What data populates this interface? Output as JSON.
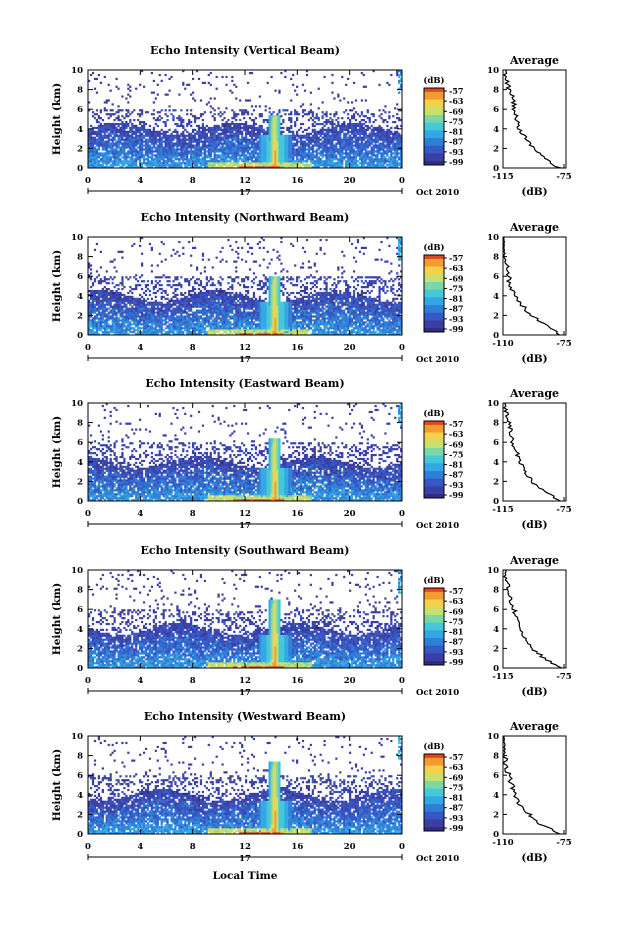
{
  "figure": {
    "x_axis_label": "Local Time",
    "date_label": "Oct 2010",
    "day_label": "17"
  },
  "chart_data": [
    {
      "type": "heatmap",
      "title": "Echo Intensity (Vertical Beam)",
      "ylabel": "Height (km)",
      "xticks": [
        "0",
        "4",
        "8",
        "12",
        "16",
        "20",
        "0"
      ],
      "yticks": [
        "0",
        "2",
        "4",
        "6",
        "8",
        "10"
      ],
      "xlim": [
        0,
        24
      ],
      "ylim": [
        0,
        10
      ],
      "colorbar": {
        "unit": "(dB)",
        "ticks": [
          "-57",
          "-63",
          "-69",
          "-75",
          "-81",
          "-87",
          "-93",
          "-99"
        ]
      },
      "average": {
        "title": "Average",
        "xlabel": "(dB)",
        "xticks": [
          "-115",
          "-75"
        ],
        "yticks": [
          "0",
          "2",
          "4",
          "6",
          "8",
          "10"
        ],
        "height_km": [
          0,
          1,
          2,
          3,
          4,
          5,
          6,
          7,
          8,
          9,
          10
        ],
        "db": [
          -78,
          -88,
          -95,
          -100,
          -104,
          -106,
          -108,
          -108,
          -111,
          -113,
          -114
        ]
      }
    },
    {
      "type": "heatmap",
      "title": "Echo Intensity (Northward Beam)",
      "ylabel": "Height (km)",
      "xticks": [
        "0",
        "4",
        "8",
        "12",
        "16",
        "20",
        "0"
      ],
      "yticks": [
        "0",
        "2",
        "4",
        "6",
        "8",
        "10"
      ],
      "xlim": [
        0,
        24
      ],
      "ylim": [
        0,
        10
      ],
      "colorbar": {
        "unit": "(dB)",
        "ticks": [
          "-57",
          "-63",
          "-69",
          "-75",
          "-81",
          "-87",
          "-93",
          "-99"
        ]
      },
      "average": {
        "title": "Average",
        "xlabel": "(dB)",
        "xticks": [
          "-110",
          "-75"
        ],
        "yticks": [
          "0",
          "2",
          "4",
          "6",
          "8",
          "10"
        ],
        "height_km": [
          0,
          1,
          2,
          3,
          4,
          5,
          6,
          7,
          8,
          9,
          10
        ],
        "db": [
          -77,
          -86,
          -94,
          -99,
          -103,
          -106,
          -107,
          -108,
          -109,
          -110,
          -111
        ]
      }
    },
    {
      "type": "heatmap",
      "title": "Echo Intensity (Eastward Beam)",
      "ylabel": "Height (km)",
      "xticks": [
        "0",
        "4",
        "8",
        "12",
        "16",
        "20",
        "0"
      ],
      "yticks": [
        "0",
        "2",
        "4",
        "6",
        "8",
        "10"
      ],
      "xlim": [
        0,
        24
      ],
      "ylim": [
        0,
        10
      ],
      "colorbar": {
        "unit": "(dB)",
        "ticks": [
          "-57",
          "-63",
          "-69",
          "-75",
          "-81",
          "-87",
          "-93",
          "-99"
        ]
      },
      "average": {
        "title": "Average",
        "xlabel": "(dB)",
        "xticks": [
          "-115",
          "-75"
        ],
        "yticks": [
          "0",
          "2",
          "4",
          "6",
          "8",
          "10"
        ],
        "height_km": [
          0,
          1,
          2,
          3,
          4,
          5,
          6,
          7,
          8,
          9,
          10
        ],
        "db": [
          -78,
          -88,
          -96,
          -101,
          -104,
          -106,
          -109,
          -110,
          -111,
          -113,
          -114
        ]
      }
    },
    {
      "type": "heatmap",
      "title": "Echo Intensity (Southward Beam)",
      "ylabel": "Height (km)",
      "xticks": [
        "0",
        "4",
        "8",
        "12",
        "16",
        "20",
        "0"
      ],
      "yticks": [
        "0",
        "2",
        "4",
        "6",
        "8",
        "10"
      ],
      "xlim": [
        0,
        24
      ],
      "ylim": [
        0,
        10
      ],
      "colorbar": {
        "unit": "(dB)",
        "ticks": [
          "-57",
          "-63",
          "-69",
          "-75",
          "-81",
          "-87",
          "-93",
          "-99"
        ]
      },
      "average": {
        "title": "Average",
        "xlabel": "(dB)",
        "xticks": [
          "-115",
          "-75"
        ],
        "yticks": [
          "0",
          "2",
          "4",
          "6",
          "8",
          "10"
        ],
        "height_km": [
          0,
          1,
          2,
          3,
          4,
          5,
          6,
          7,
          8,
          9,
          10
        ],
        "db": [
          -77,
          -88,
          -96,
          -101,
          -104,
          -106,
          -108,
          -110,
          -111,
          -113,
          -114
        ]
      }
    },
    {
      "type": "heatmap",
      "title": "Echo Intensity (Westward Beam)",
      "ylabel": "Height (km)",
      "xticks": [
        "0",
        "4",
        "8",
        "12",
        "16",
        "20",
        "0"
      ],
      "yticks": [
        "0",
        "2",
        "4",
        "6",
        "8",
        "10"
      ],
      "xlim": [
        0,
        24
      ],
      "ylim": [
        0,
        10
      ],
      "colorbar": {
        "unit": "(dB)",
        "ticks": [
          "-57",
          "-63",
          "-69",
          "-75",
          "-81",
          "-87",
          "-93",
          "-99"
        ]
      },
      "average": {
        "title": "Average",
        "xlabel": "(dB)",
        "xticks": [
          "-110",
          "-75"
        ],
        "yticks": [
          "0",
          "2",
          "4",
          "6",
          "8",
          "10"
        ],
        "height_km": [
          0,
          1,
          2,
          3,
          4,
          5,
          6,
          7,
          8,
          9,
          10
        ],
        "db": [
          -78,
          -88,
          -95,
          -100,
          -103,
          -105,
          -107,
          -108,
          -109,
          -110,
          -111
        ]
      }
    }
  ],
  "colormap": [
    "#fde0dd",
    "#d7191c",
    "#f46d43",
    "#fdae61",
    "#fee08b",
    "#ffffbf",
    "#abdda4",
    "#66c2a5",
    "#3288bd",
    "#5e4fa2",
    "#2e2a7a"
  ]
}
